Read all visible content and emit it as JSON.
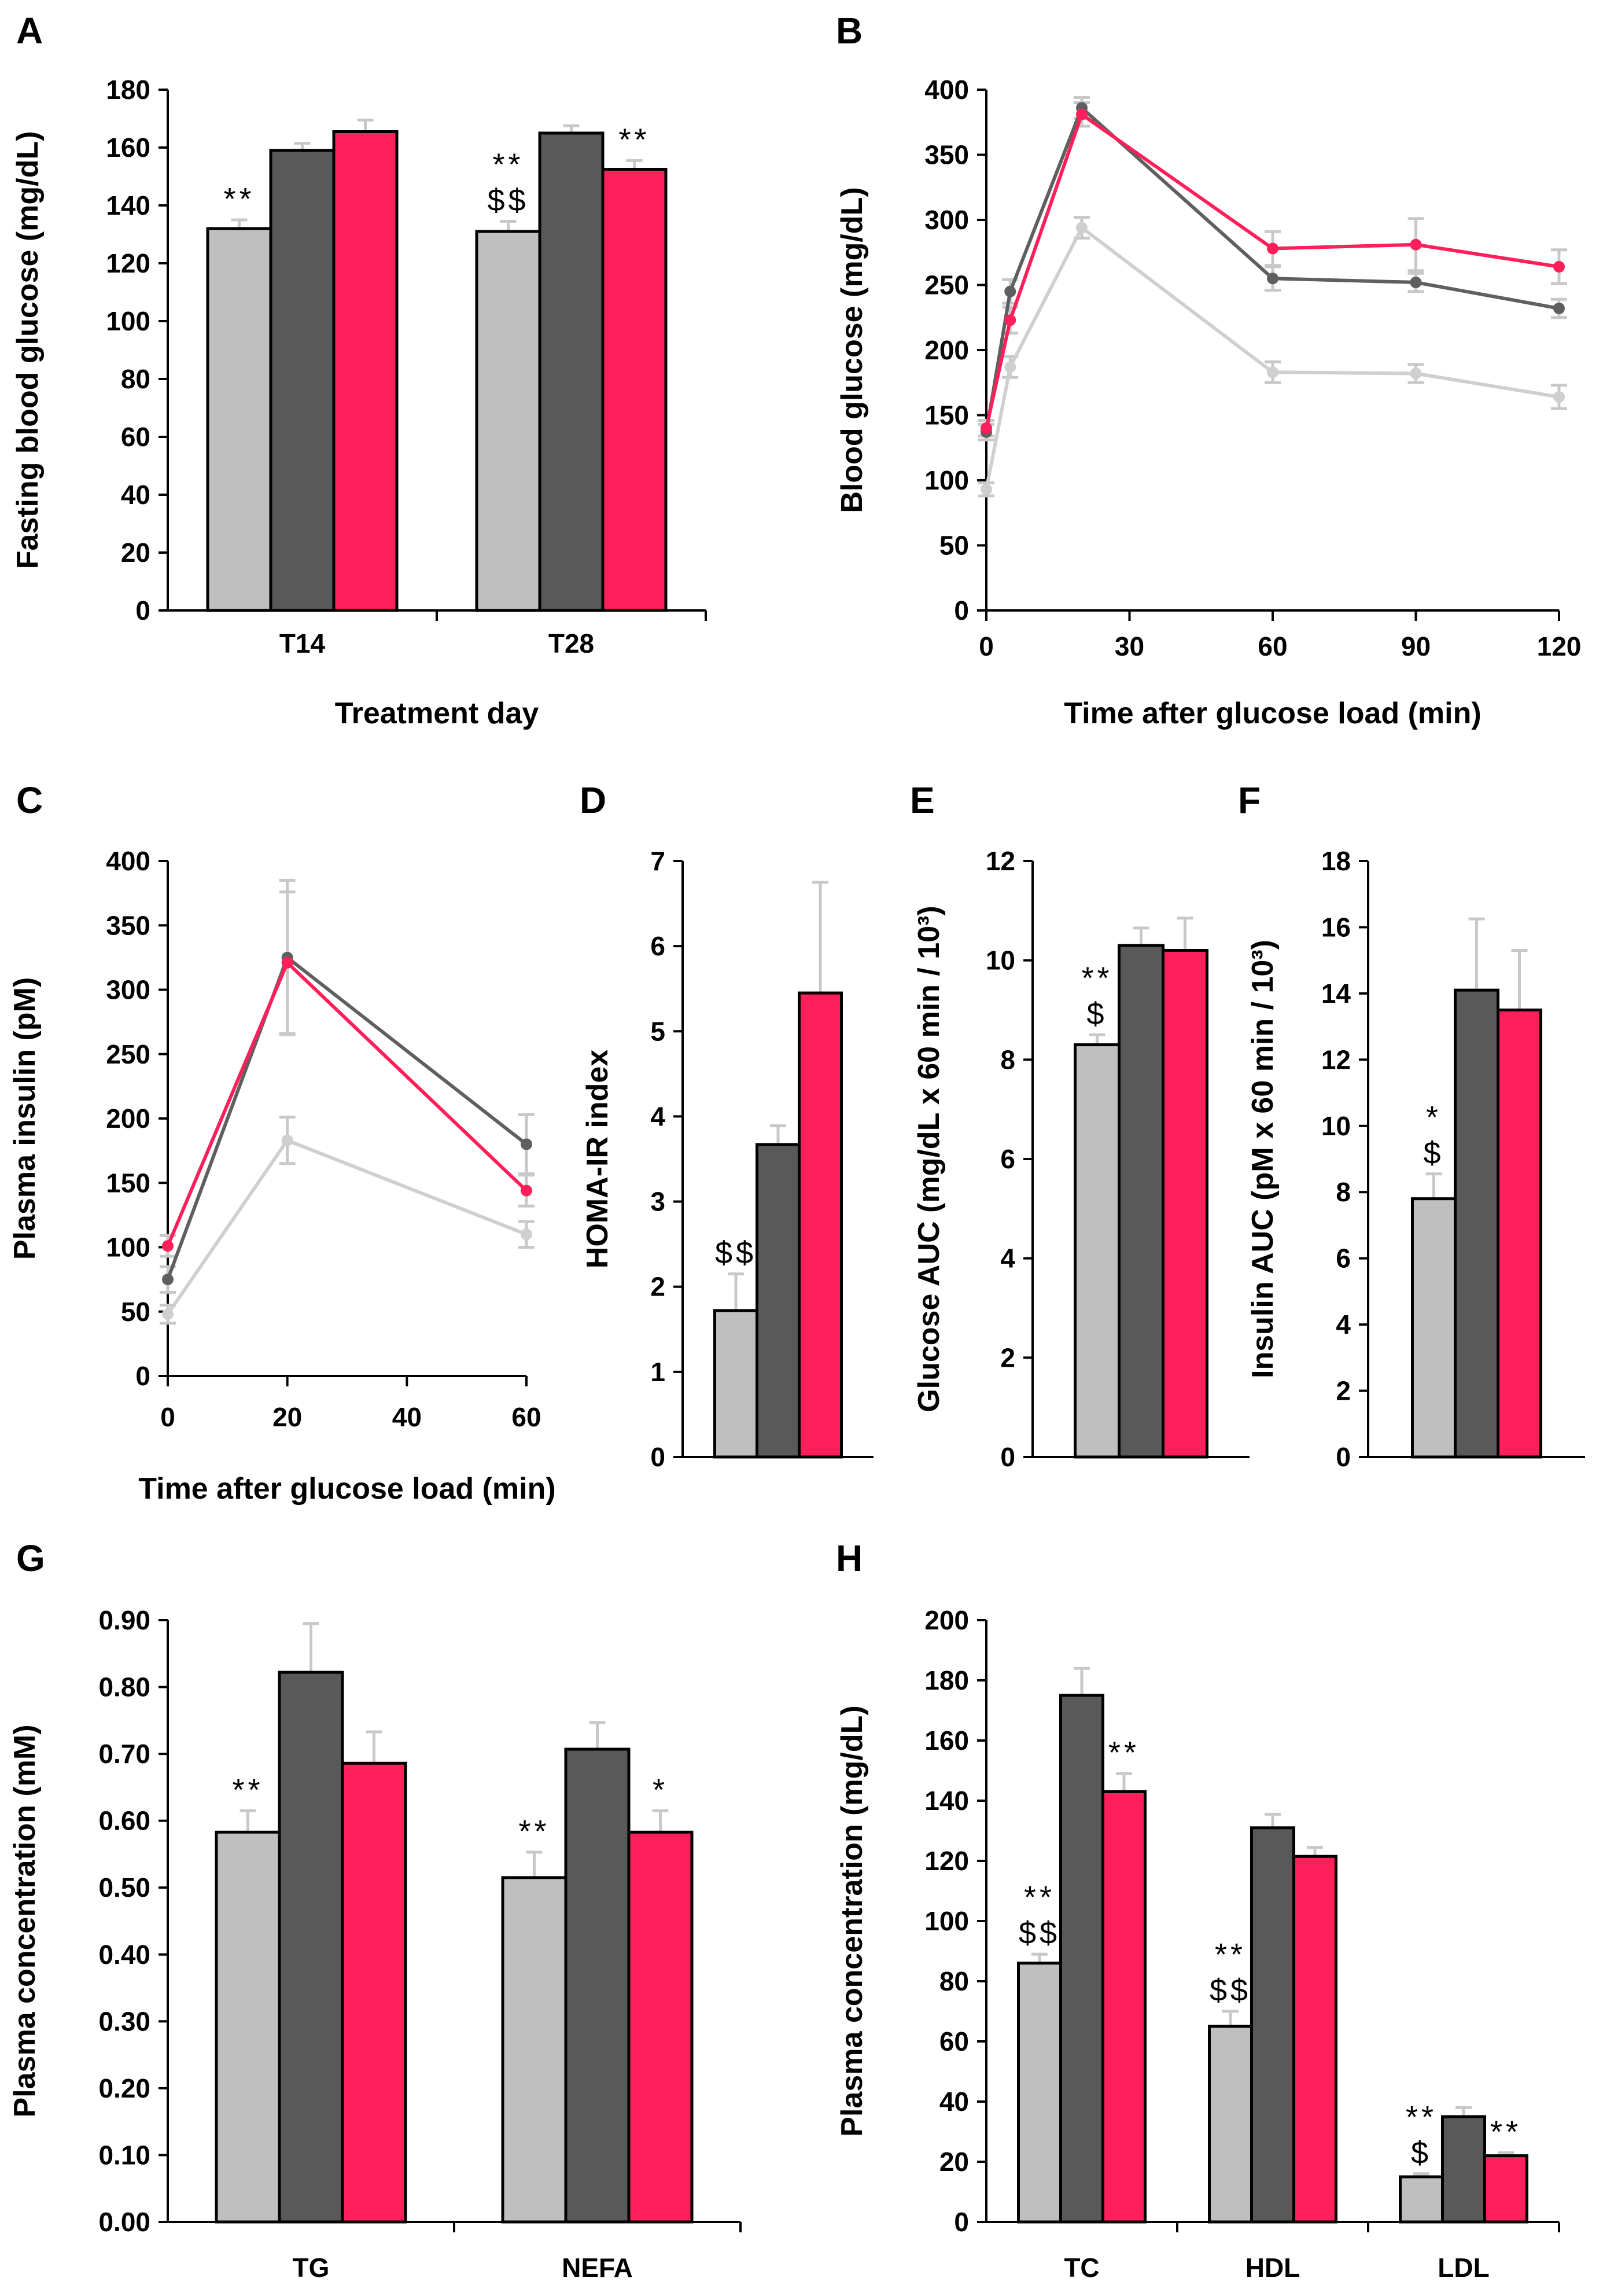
{
  "colors": {
    "group1": "#bfbfbf",
    "group2": "#595959",
    "group3": "#ff1f5a",
    "line1": "#cfcfcf",
    "line2": "#5f5f5f",
    "line3": "#ff1f5a",
    "error": "#c8c8c8"
  },
  "chart_data": [
    {
      "id": "A",
      "type": "bar",
      "panel_label": "A",
      "ylabel": "Fasting blood glucose (mg/dL)",
      "xlabel": "Treatment day",
      "ylim": [
        0,
        180
      ],
      "yticks": [
        "0",
        "20",
        "40",
        "60",
        "80",
        "100",
        "120",
        "140",
        "160",
        "180"
      ],
      "categories": [
        "T14",
        "T28"
      ],
      "series": [
        {
          "name": "group1",
          "values": [
            132,
            131
          ],
          "errors": [
            3,
            3.5
          ]
        },
        {
          "name": "group2",
          "values": [
            159,
            165
          ],
          "errors": [
            2.5,
            2.5
          ]
        },
        {
          "name": "group3",
          "values": [
            165.5,
            152.5
          ],
          "errors": [
            4,
            3
          ]
        }
      ],
      "annotations": [
        {
          "category": 0,
          "series": 0,
          "lines": [
            "**"
          ]
        },
        {
          "category": 1,
          "series": 0,
          "lines": [
            "**",
            "$$"
          ]
        },
        {
          "category": 1,
          "series": 2,
          "lines": [
            "**"
          ]
        }
      ]
    },
    {
      "id": "B",
      "type": "line",
      "panel_label": "B",
      "ylabel": "Blood glucose (mg/dL)",
      "xlabel": "Time after glucose load (min)",
      "ylim": [
        0,
        400
      ],
      "xlim": [
        0,
        120
      ],
      "yticks": [
        "0",
        "50",
        "100",
        "150",
        "200",
        "250",
        "300",
        "350",
        "400"
      ],
      "xticks": [
        "0",
        "30",
        "60",
        "90",
        "120"
      ],
      "x": [
        0,
        5,
        20,
        60,
        90,
        120
      ],
      "series": [
        {
          "name": "group1",
          "values": [
            93,
            187,
            294,
            183,
            182,
            164
          ],
          "errors": [
            5,
            8,
            8,
            8,
            7,
            9
          ]
        },
        {
          "name": "group2",
          "values": [
            137,
            245,
            386,
            255,
            252,
            232
          ],
          "errors": [
            6,
            9,
            8,
            9,
            7,
            7
          ]
        },
        {
          "name": "group3",
          "values": [
            140,
            223,
            381,
            278,
            281,
            264
          ],
          "errors": [
            6,
            10,
            9,
            13,
            20,
            13
          ]
        }
      ]
    },
    {
      "id": "C",
      "type": "line",
      "panel_label": "C",
      "ylabel": "Plasma insulin (pM)",
      "xlabel": "Time after glucose load (min)",
      "ylim": [
        0,
        400
      ],
      "xlim": [
        0,
        60
      ],
      "yticks": [
        "0",
        "50",
        "100",
        "150",
        "200",
        "250",
        "300",
        "350",
        "400"
      ],
      "xticks": [
        "0",
        "20",
        "40",
        "60"
      ],
      "x": [
        0,
        20,
        60
      ],
      "series": [
        {
          "name": "group1",
          "values": [
            48,
            183,
            110
          ],
          "errors": [
            7,
            18,
            10
          ]
        },
        {
          "name": "group2",
          "values": [
            75,
            325,
            180
          ],
          "errors": [
            10,
            60,
            23
          ]
        },
        {
          "name": "group3",
          "values": [
            101,
            321,
            144
          ],
          "errors": [
            8,
            55,
            12
          ]
        }
      ]
    },
    {
      "id": "D",
      "type": "bar",
      "panel_label": "D",
      "ylabel": "HOMA-IR index",
      "xlabel": "",
      "ylim": [
        0,
        7
      ],
      "yticks": [
        "0",
        "1",
        "2",
        "3",
        "4",
        "5",
        "6",
        "7"
      ],
      "categories": [
        ""
      ],
      "series": [
        {
          "name": "group1",
          "values": [
            1.72
          ],
          "errors": [
            0.43
          ]
        },
        {
          "name": "group2",
          "values": [
            3.67
          ],
          "errors": [
            0.22
          ]
        },
        {
          "name": "group3",
          "values": [
            5.45
          ],
          "errors": [
            1.3
          ]
        }
      ],
      "annotations": [
        {
          "category": 0,
          "series": 0,
          "lines": [
            "$$"
          ]
        }
      ]
    },
    {
      "id": "E",
      "type": "bar",
      "panel_label": "E",
      "ylabel": "Glucose AUC (mg/dL x 60 min / 10³)",
      "xlabel": "",
      "ylim": [
        0,
        12
      ],
      "yticks": [
        "0",
        "2",
        "4",
        "6",
        "8",
        "10",
        "12"
      ],
      "categories": [
        ""
      ],
      "series": [
        {
          "name": "group1",
          "values": [
            8.3
          ],
          "errors": [
            0.2
          ]
        },
        {
          "name": "group2",
          "values": [
            10.3
          ],
          "errors": [
            0.35
          ]
        },
        {
          "name": "group3",
          "values": [
            10.2
          ],
          "errors": [
            0.65
          ]
        }
      ],
      "annotations": [
        {
          "category": 0,
          "series": 0,
          "lines": [
            "**",
            "$"
          ]
        }
      ]
    },
    {
      "id": "F",
      "type": "bar",
      "panel_label": "F",
      "ylabel": "Insulin AUC (pM x 60 min / 10³)",
      "xlabel": "",
      "ylim": [
        0,
        18
      ],
      "yticks": [
        "0",
        "2",
        "4",
        "6",
        "8",
        "10",
        "12",
        "14",
        "16",
        "18"
      ],
      "categories": [
        ""
      ],
      "series": [
        {
          "name": "group1",
          "values": [
            7.8
          ],
          "errors": [
            0.75
          ]
        },
        {
          "name": "group2",
          "values": [
            14.1
          ],
          "errors": [
            2.15
          ]
        },
        {
          "name": "group3",
          "values": [
            13.5
          ],
          "errors": [
            1.8
          ]
        }
      ],
      "annotations": [
        {
          "category": 0,
          "series": 0,
          "lines": [
            "*",
            "$"
          ]
        }
      ]
    },
    {
      "id": "G",
      "type": "bar",
      "panel_label": "G",
      "ylabel": "Plasma concentration (mM)",
      "xlabel": "",
      "ylim": [
        0,
        0.9
      ],
      "yticks": [
        "0.00",
        "0.10",
        "0.20",
        "0.30",
        "0.40",
        "0.50",
        "0.60",
        "0.70",
        "0.80",
        "0.90"
      ],
      "categories": [
        "TG",
        "NEFA"
      ],
      "series": [
        {
          "name": "group1",
          "values": [
            0.583,
            0.515
          ],
          "errors": [
            0.032,
            0.038
          ]
        },
        {
          "name": "group2",
          "values": [
            0.822,
            0.707
          ],
          "errors": [
            0.073,
            0.04
          ]
        },
        {
          "name": "group3",
          "values": [
            0.686,
            0.583
          ],
          "errors": [
            0.047,
            0.032
          ]
        }
      ],
      "annotations": [
        {
          "category": 0,
          "series": 0,
          "lines": [
            "**"
          ]
        },
        {
          "category": 1,
          "series": 0,
          "lines": [
            "**"
          ]
        },
        {
          "category": 1,
          "series": 2,
          "lines": [
            "*"
          ]
        }
      ]
    },
    {
      "id": "H",
      "type": "bar",
      "panel_label": "H",
      "ylabel": "Plasma concentration (mg/dL)",
      "xlabel": "",
      "ylim": [
        0,
        200
      ],
      "yticks": [
        "0",
        "20",
        "40",
        "60",
        "80",
        "100",
        "120",
        "140",
        "160",
        "180",
        "200"
      ],
      "categories": [
        "TC",
        "HDL",
        "LDL"
      ],
      "series": [
        {
          "name": "group1",
          "values": [
            86,
            65,
            15
          ],
          "errors": [
            3,
            5,
            1
          ]
        },
        {
          "name": "group2",
          "values": [
            175,
            131,
            35
          ],
          "errors": [
            9,
            4.5,
            3
          ]
        },
        {
          "name": "group3",
          "values": [
            143,
            121.5,
            22
          ],
          "errors": [
            6,
            3,
            1
          ]
        }
      ],
      "annotations": [
        {
          "category": 0,
          "series": 0,
          "lines": [
            "**",
            "$$"
          ]
        },
        {
          "category": 0,
          "series": 2,
          "lines": [
            "**"
          ]
        },
        {
          "category": 1,
          "series": 0,
          "lines": [
            "**",
            "$$"
          ]
        },
        {
          "category": 2,
          "series": 0,
          "lines": [
            "**",
            "$"
          ]
        },
        {
          "category": 2,
          "series": 2,
          "lines": [
            "**"
          ]
        }
      ]
    }
  ]
}
